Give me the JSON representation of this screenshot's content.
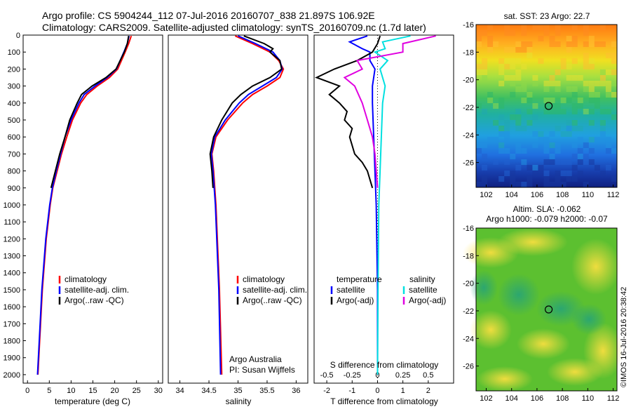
{
  "header": {
    "line1": "Argo profile: CS 5904244_112 07-Jul-2016 20160707_838 21.897S 106.92E",
    "line2": "Climatology: CARS2009. Satellite-adjusted climatology: synTS_20160709.nc (1.7d later)"
  },
  "colors": {
    "climatology": "#ff0000",
    "satellite": "#0000ff",
    "argo": "#000000",
    "sat_salinity": "#00e0e0",
    "argo_salinity": "#e000e0"
  },
  "chart_data": [
    {
      "type": "line",
      "xlabel": "temperature (deg C)",
      "ylim": [
        2050,
        0
      ],
      "xlim": [
        -1,
        31
      ],
      "xticks": [
        "0",
        "5",
        "10",
        "15",
        "20",
        "25",
        "30"
      ],
      "yticks": [
        "0",
        "100",
        "200",
        "300",
        "400",
        "500",
        "600",
        "700",
        "800",
        "900",
        "1000",
        "1100",
        "1200",
        "1300",
        "1400",
        "1500",
        "1600",
        "1700",
        "1800",
        "1900",
        "2000"
      ],
      "legend": [
        "climatology",
        "satellite-adj. clim.",
        "Argo(..raw -QC)"
      ],
      "series": [
        {
          "name": "climatology",
          "depth": [
            5,
            50,
            100,
            200,
            250,
            300,
            350,
            400,
            500,
            600,
            700,
            800,
            900,
            1000,
            1200,
            1500,
            1800,
            2000
          ],
          "values": [
            23.8,
            23.2,
            22.4,
            20.7,
            18.8,
            16.0,
            13.6,
            12.2,
            10.3,
            9.0,
            7.8,
            6.8,
            5.8,
            5.2,
            4.3,
            3.4,
            2.8,
            2.4
          ]
        },
        {
          "name": "satellite-adj. clim.",
          "depth": [
            5,
            50,
            100,
            200,
            250,
            300,
            350,
            400,
            500,
            600,
            700,
            800,
            900,
            1000,
            1200,
            1500,
            1800,
            2000
          ],
          "values": [
            23.3,
            22.9,
            22.1,
            20.4,
            18.3,
            15.5,
            13.0,
            11.8,
            10.0,
            8.6,
            7.6,
            6.6,
            5.7,
            5.1,
            4.2,
            3.3,
            2.7,
            2.3
          ]
        },
        {
          "name": "Argo(..raw -QC)",
          "depth": [
            5,
            50,
            100,
            200,
            250,
            300,
            350,
            400,
            500,
            600,
            700,
            800,
            900
          ],
          "values": [
            23.2,
            22.9,
            22.2,
            20.3,
            18.0,
            14.8,
            12.4,
            11.4,
            9.7,
            8.6,
            7.4,
            6.4,
            5.4
          ]
        }
      ]
    },
    {
      "type": "line",
      "xlabel": "salinity",
      "ylim": [
        2050,
        0
      ],
      "xlim": [
        33.8,
        36.2
      ],
      "xticks": [
        "34",
        "34.5",
        "35",
        "35.5",
        "36"
      ],
      "legend": [
        "climatology",
        "satellite-adj. clim.",
        "Argo(..raw -QC)"
      ],
      "annotation": [
        "Argo Australia",
        "PI: Susan Wijffels"
      ],
      "series": [
        {
          "name": "climatology",
          "depth": [
            5,
            50,
            100,
            150,
            200,
            250,
            300,
            350,
            400,
            500,
            600,
            700,
            800,
            1000,
            1500,
            2000
          ],
          "values": [
            34.95,
            35.25,
            35.55,
            35.7,
            35.78,
            35.72,
            35.5,
            35.25,
            35.08,
            34.82,
            34.62,
            34.55,
            34.58,
            34.62,
            34.68,
            34.72
          ]
        },
        {
          "name": "satellite-adj. clim.",
          "depth": [
            5,
            50,
            100,
            150,
            200,
            250,
            300,
            350,
            400,
            500,
            600,
            700,
            800,
            1000,
            1500,
            2000
          ],
          "values": [
            35.0,
            35.3,
            35.6,
            35.72,
            35.76,
            35.66,
            35.42,
            35.18,
            35.02,
            34.78,
            34.6,
            34.54,
            34.57,
            34.61,
            34.67,
            34.7
          ]
        },
        {
          "name": "Argo(..raw -QC)",
          "depth": [
            5,
            50,
            80,
            100,
            150,
            200,
            250,
            300,
            350,
            400,
            500,
            600,
            700,
            800,
            900
          ],
          "values": [
            35.1,
            35.45,
            35.6,
            35.55,
            35.72,
            35.75,
            35.55,
            35.25,
            35.05,
            34.9,
            34.72,
            34.58,
            34.52,
            34.55,
            34.57
          ]
        }
      ]
    },
    {
      "type": "line",
      "xlabel": "T difference from climatology",
      "xlabel_top": "S difference from climatology",
      "ylim": [
        2050,
        0
      ],
      "xlim": [
        -2.5,
        3.0
      ],
      "xticks": [
        "-2",
        "-1",
        "0",
        "1",
        "2"
      ],
      "xticks_top": [
        "-0.5",
        "-0.25",
        "0",
        "0.25",
        "0.5"
      ],
      "legend": {
        "temperature": [
          "satellite",
          "Argo(-adj)"
        ],
        "salinity": [
          "satellite",
          "Argo(-adj)"
        ]
      },
      "legend_titles": [
        "temperature",
        "salinity"
      ],
      "series": [
        {
          "name": "satellite",
          "group": "temperature",
          "depth": [
            5,
            40,
            80,
            100,
            150,
            200,
            300,
            400,
            600,
            800,
            1000,
            1500,
            2000
          ],
          "values": [
            -0.4,
            -1.1,
            -0.6,
            -0.3,
            -0.3,
            -0.1,
            -0.2,
            -0.2,
            -0.15,
            -0.1,
            -0.05,
            0.0,
            0.0
          ]
        },
        {
          "name": "Argo(-adj)",
          "group": "temperature",
          "depth": [
            5,
            50,
            100,
            150,
            200,
            250,
            300,
            350,
            400,
            450,
            500,
            550,
            600,
            650,
            700,
            750,
            800,
            900
          ],
          "values": [
            0.1,
            0.0,
            -0.2,
            -0.8,
            -1.7,
            -2.4,
            -1.5,
            -1.9,
            -1.5,
            -1.2,
            -1.3,
            -1.0,
            -1.1,
            -1.0,
            -0.9,
            -0.6,
            -0.4,
            -0.2
          ]
        },
        {
          "name": "satellite",
          "group": "salinity",
          "depth": [
            5,
            40,
            80,
            100,
            150,
            200,
            300,
            400,
            600,
            800,
            1000,
            1500,
            2000
          ],
          "values": [
            1.3,
            0.2,
            0.3,
            -0.1,
            0.4,
            0.1,
            0.3,
            0.2,
            0.15,
            0.1,
            0.05,
            0.02,
            0.0
          ]
        },
        {
          "name": "Argo(-adj)",
          "group": "salinity",
          "depth": [
            5,
            50,
            100,
            150,
            200,
            250,
            300,
            400,
            500,
            600,
            700,
            800,
            900
          ],
          "values": [
            2.3,
            1.0,
            1.0,
            -0.8,
            -0.6,
            -1.3,
            -0.9,
            -0.6,
            -0.4,
            -0.2,
            -0.1,
            -0.05,
            0.0
          ]
        }
      ]
    },
    {
      "type": "heatmap",
      "title": "sat. SST: 23 Argo: 22.7",
      "xticks": [
        "102",
        "104",
        "106",
        "108",
        "110",
        "112"
      ],
      "yticks": [
        "-16",
        "-18",
        "-20",
        "-22",
        "-24",
        "-26"
      ],
      "xlim": [
        101.2,
        112.3
      ],
      "ylim": [
        -27.8,
        -16
      ],
      "marker": {
        "lon": 106.92,
        "lat": -21.9
      }
    },
    {
      "type": "heatmap",
      "title": "Altim. SLA: -0.062",
      "subtitle": "Argo h1000: -0.079 h2000: -0.07",
      "xticks": [
        "102",
        "104",
        "106",
        "108",
        "110",
        "112"
      ],
      "yticks": [
        "-16",
        "-18",
        "-20",
        "-22",
        "-24",
        "-26"
      ],
      "xlim": [
        101.2,
        112.3
      ],
      "ylim": [
        -27.8,
        -16
      ],
      "marker": {
        "lon": 106.92,
        "lat": -21.9
      }
    }
  ],
  "credit": "©IMOS 16-Jul-2016 20:38:42"
}
